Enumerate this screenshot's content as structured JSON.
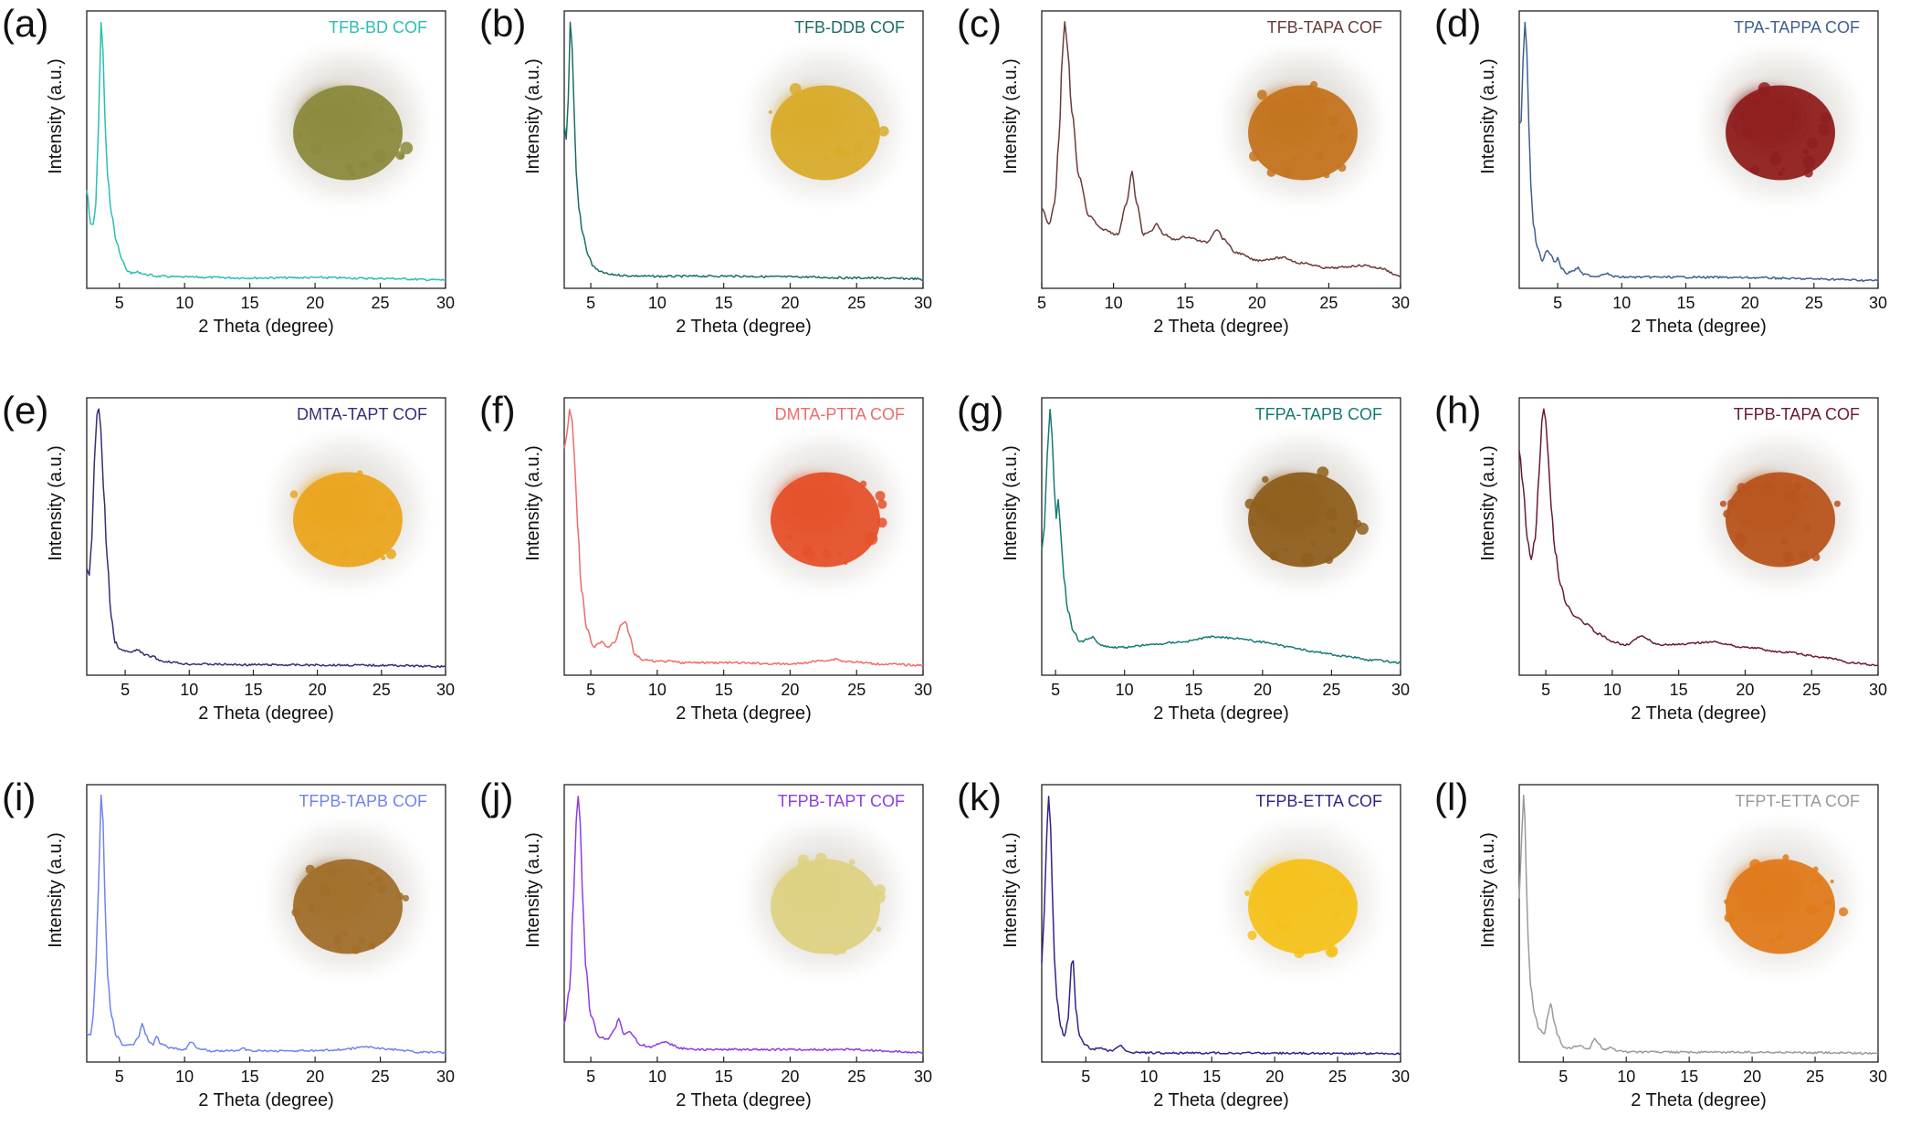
{
  "chart_data": [
    {
      "type": "line",
      "panel": "(a)",
      "title": "TFB-BD COF",
      "color": "#2bbfb3",
      "xlabel": "2 Theta (degree)",
      "ylabel": "Intensity (a.u.)",
      "xlim": [
        2.5,
        30
      ],
      "xticks": [
        5,
        10,
        15,
        20,
        25,
        30
      ],
      "photo": {
        "name": "olive-green powder",
        "color": "#8c8a3c",
        "bg": "#e4e1dc"
      },
      "series": [
        {
          "x": [
            2.5,
            2.8,
            3.0,
            3.2,
            3.4,
            3.6,
            3.75,
            3.9,
            4.1,
            4.4,
            4.8,
            5.2,
            5.6,
            6.0,
            6.4,
            7.0,
            8.0,
            10,
            15,
            20,
            25,
            30
          ],
          "y": [
            35,
            22,
            22,
            30,
            60,
            100,
            88,
            62,
            40,
            26,
            15,
            8,
            4,
            3,
            3.5,
            2.5,
            1.8,
            1.5,
            1.2,
            1.3,
            1.0,
            0.4
          ]
        }
      ]
    },
    {
      "type": "line",
      "panel": "(b)",
      "title": "TFB-DDB COF",
      "color": "#1b6e66",
      "xlabel": "2 Theta (degree)",
      "ylabel": "Intensity (a.u.)",
      "xlim": [
        3,
        30
      ],
      "xticks": [
        5,
        10,
        15,
        20,
        25,
        30
      ],
      "photo": {
        "name": "yellow powder",
        "color": "#d9ac2c",
        "bg": "#e8e6e3"
      },
      "series": [
        {
          "x": [
            3.0,
            3.15,
            3.3,
            3.45,
            3.6,
            3.75,
            3.9,
            4.1,
            4.4,
            4.8,
            5.2,
            5.7,
            6.5,
            8,
            10,
            15,
            20,
            25,
            29.5,
            30
          ],
          "y": [
            60,
            55,
            70,
            100,
            90,
            65,
            42,
            28,
            18,
            10,
            5.5,
            3.5,
            2.5,
            2,
            1.8,
            1.9,
            1.6,
            1.2,
            0.9,
            0.3
          ]
        }
      ]
    },
    {
      "type": "line",
      "panel": "(c)",
      "title": "TFB-TAPA COF",
      "color": "#6b3a3a",
      "xlabel": "2 Theta (degree)",
      "ylabel": "Intensity (a.u.)",
      "xlim": [
        5,
        30
      ],
      "xticks": [
        5,
        10,
        15,
        20,
        25,
        30
      ],
      "photo": {
        "name": "orange-brown powder",
        "color": "#c4741f",
        "bg": "#e4e1dd"
      },
      "series": [
        {
          "x": [
            5.0,
            5.5,
            5.9,
            6.2,
            6.45,
            6.6,
            6.8,
            7.1,
            7.6,
            8.3,
            9.2,
            10.3,
            10.9,
            11.3,
            11.6,
            12.1,
            12.6,
            13.0,
            13.5,
            14.2,
            15.0,
            16.5,
            17.2,
            17.7,
            18.5,
            20,
            21.8,
            23,
            25,
            27.5,
            28.5,
            30
          ],
          "y": [
            28,
            22,
            30,
            55,
            88,
            100,
            90,
            65,
            40,
            25,
            20,
            18,
            30,
            42,
            30,
            18,
            19,
            22,
            18,
            16,
            17,
            15,
            20,
            16,
            11,
            8,
            9,
            7,
            5,
            6,
            5,
            2
          ]
        }
      ]
    },
    {
      "type": "line",
      "panel": "(d)",
      "title": "TPA-TAPPA COF",
      "color": "#3f5f8f",
      "xlabel": "2 Theta (degree)",
      "ylabel": "Intensity (a.u.)",
      "xlim": [
        2,
        30
      ],
      "xticks": [
        5,
        10,
        15,
        20,
        25,
        30
      ],
      "photo": {
        "name": "dark red powder",
        "color": "#8f1f1e",
        "bg": "#e6e3df"
      },
      "series": [
        {
          "x": [
            2.0,
            2.15,
            2.3,
            2.45,
            2.6,
            2.75,
            2.9,
            3.1,
            3.4,
            3.8,
            4.2,
            4.5,
            4.8,
            5.0,
            5.3,
            5.7,
            6.2,
            6.6,
            7.0,
            8.0,
            8.8,
            9.3,
            10,
            15,
            20,
            25,
            30
          ],
          "y": [
            60,
            62,
            85,
            100,
            88,
            60,
            38,
            22,
            13,
            8,
            12,
            10,
            7,
            9,
            5,
            3,
            4,
            5,
            2.5,
            1.8,
            3,
            1.8,
            1.5,
            1.5,
            1.3,
            0.8,
            0.2
          ]
        }
      ]
    },
    {
      "type": "line",
      "panel": "(e)",
      "title": "DMTA-TAPT COF",
      "color": "#3d2a7a",
      "xlabel": "2 Theta (degree)",
      "ylabel": "Intensity (a.u.)",
      "xlim": [
        2,
        30
      ],
      "xticks": [
        5,
        10,
        15,
        20,
        25,
        30
      ],
      "photo": {
        "name": "yellow-orange powder",
        "color": "#eba51f",
        "bg": "#e7e4e0"
      },
      "series": [
        {
          "x": [
            2.0,
            2.2,
            2.4,
            2.6,
            2.8,
            2.95,
            3.1,
            3.3,
            3.6,
            3.9,
            4.2,
            4.6,
            5.0,
            5.5,
            6.0,
            6.5,
            7.0,
            8.0,
            10,
            15,
            20,
            25,
            30
          ],
          "y": [
            38,
            36,
            50,
            80,
            98,
            100,
            92,
            70,
            42,
            20,
            10,
            7,
            6.5,
            6,
            7,
            5,
            4.5,
            2.5,
            1.5,
            1.2,
            1.1,
            1.0,
            0.5
          ]
        }
      ]
    },
    {
      "type": "line",
      "panel": "(f)",
      "title": "DMTA-PTTA COF",
      "color": "#ef6b6b",
      "xlabel": "2 Theta (degree)",
      "ylabel": "Intensity (a.u.)",
      "xlim": [
        3,
        30
      ],
      "xticks": [
        5,
        10,
        15,
        20,
        25,
        30
      ],
      "photo": {
        "name": "red-orange powder",
        "color": "#e5512a",
        "bg": "#e7e3e0"
      },
      "series": [
        {
          "x": [
            3.0,
            3.2,
            3.4,
            3.6,
            3.8,
            4.0,
            4.3,
            4.7,
            5.2,
            5.8,
            6.3,
            6.8,
            7.3,
            7.6,
            7.9,
            8.3,
            9,
            10,
            11,
            12,
            15,
            20,
            23,
            23.5,
            24,
            27,
            30
          ],
          "y": [
            85,
            90,
            100,
            95,
            78,
            55,
            30,
            15,
            8,
            10,
            8,
            10,
            17,
            18,
            13,
            5,
            3,
            2.5,
            2.5,
            2,
            2,
            1.5,
            3,
            3.5,
            2.5,
            1.5,
            1
          ]
        }
      ]
    },
    {
      "type": "line",
      "panel": "(g)",
      "title": "TFPA-TAPB COF",
      "color": "#177a72",
      "xlabel": "2 Theta (degree)",
      "ylabel": "Intensity (a.u.)",
      "xlim": [
        4,
        30
      ],
      "xticks": [
        5,
        10,
        15,
        20,
        25,
        30
      ],
      "photo": {
        "name": "brown powder",
        "color": "#8f5f1d",
        "bg": "#e4e1dd"
      },
      "series": [
        {
          "x": [
            4.0,
            4.2,
            4.4,
            4.6,
            4.75,
            4.9,
            5.05,
            5.2,
            5.4,
            5.6,
            5.9,
            6.3,
            6.8,
            7.3,
            7.7,
            8.2,
            9,
            10,
            12,
            14,
            16.5,
            18,
            20,
            22,
            24,
            26,
            28,
            30
          ],
          "y": [
            45,
            55,
            82,
            100,
            90,
            70,
            58,
            65,
            50,
            35,
            22,
            14,
            10,
            11,
            12,
            9,
            8,
            8,
            9,
            10,
            12,
            11.5,
            10,
            8,
            6,
            4.5,
            3,
            2
          ]
        }
      ]
    },
    {
      "type": "line",
      "panel": "(h)",
      "title": "TFPB-TAPA COF",
      "color": "#6a1a33",
      "xlabel": "2 Theta (degree)",
      "ylabel": "Intensity (a.u.)",
      "xlim": [
        3,
        30
      ],
      "xticks": [
        5,
        10,
        15,
        20,
        25,
        30
      ],
      "photo": {
        "name": "rust-orange powder",
        "color": "#b8541d",
        "bg": "#e6e2de"
      },
      "series": [
        {
          "x": [
            3.0,
            3.3,
            3.6,
            3.9,
            4.2,
            4.5,
            4.7,
            4.85,
            5.0,
            5.2,
            5.4,
            5.7,
            6.1,
            6.6,
            7.2,
            8.0,
            9.0,
            10,
            11,
            12.2,
            13.5,
            15,
            17.5,
            20,
            23,
            26,
            28,
            30
          ],
          "y": [
            84,
            70,
            50,
            42,
            50,
            75,
            95,
            100,
            95,
            80,
            62,
            45,
            32,
            24,
            20,
            17,
            13,
            10,
            9,
            12,
            9,
            9,
            10,
            8,
            6,
            4,
            2,
            1
          ]
        }
      ]
    },
    {
      "type": "line",
      "panel": "(i)",
      "title": "TFPB-TAPB COF",
      "color": "#6f84ee",
      "xlabel": "2 Theta (degree)",
      "ylabel": "Intensity (a.u.)",
      "xlim": [
        2.5,
        30
      ],
      "xticks": [
        5,
        10,
        15,
        20,
        25,
        30
      ],
      "photo": {
        "name": "ochre-brown powder",
        "color": "#a16f2c",
        "bg": "#e6e3df"
      },
      "series": [
        {
          "x": [
            2.5,
            2.8,
            3.0,
            3.2,
            3.4,
            3.6,
            3.75,
            3.9,
            4.1,
            4.4,
            4.8,
            5.3,
            6.0,
            6.5,
            6.75,
            7.0,
            7.3,
            7.6,
            7.85,
            8.2,
            9,
            10,
            10.5,
            11,
            12,
            14,
            14.4,
            15,
            17.5,
            20,
            22,
            24,
            26,
            28,
            30
          ],
          "y": [
            8,
            8,
            15,
            35,
            65,
            100,
            90,
            60,
            30,
            15,
            7,
            4,
            4,
            7,
            12,
            8,
            5,
            4,
            7,
            4,
            2.5,
            2,
            5,
            2.5,
            1.5,
            1.5,
            2.5,
            1.5,
            1.5,
            1.5,
            2,
            3,
            2,
            1,
            0.8
          ]
        }
      ]
    },
    {
      "type": "line",
      "panel": "(j)",
      "title": "TFPB-TAPT COF",
      "color": "#8b3fe0",
      "xlabel": "2 Theta (degree)",
      "ylabel": "Intensity (a.u.)",
      "xlim": [
        3,
        30
      ],
      "xticks": [
        5,
        10,
        15,
        20,
        25,
        30
      ],
      "photo": {
        "name": "pale yellow powder",
        "color": "#ddd283",
        "bg": "#e7e4e0"
      },
      "series": [
        {
          "x": [
            3.0,
            3.4,
            3.7,
            3.9,
            4.05,
            4.2,
            4.35,
            4.6,
            5.0,
            5.6,
            6.3,
            6.8,
            7.1,
            7.5,
            7.9,
            8.2,
            8.7,
            9.5,
            10.5,
            11,
            11.7,
            13,
            15,
            20,
            25,
            28,
            30
          ],
          "y": [
            12,
            25,
            60,
            90,
            100,
            90,
            65,
            35,
            15,
            7,
            6,
            10,
            14,
            8,
            9,
            7,
            4,
            3,
            5,
            4,
            2.5,
            2,
            2,
            2,
            2,
            1.2,
            1
          ]
        }
      ]
    },
    {
      "type": "line",
      "panel": "(k)",
      "title": "TFPB-ETTA COF",
      "color": "#3a1f8a",
      "xlabel": "2 Theta (degree)",
      "ylabel": "Intensity (a.u.)",
      "xlim": [
        1.5,
        30
      ],
      "xticks": [
        5,
        10,
        15,
        20,
        25,
        30
      ],
      "photo": {
        "name": "bright yellow powder",
        "color": "#f4c21c",
        "bg": "#ebe8e4"
      },
      "series": [
        {
          "x": [
            1.5,
            1.7,
            1.9,
            2.05,
            2.2,
            2.35,
            2.5,
            2.7,
            3.0,
            3.3,
            3.6,
            3.85,
            4.0,
            4.2,
            4.5,
            4.9,
            5.5,
            6.0,
            7.0,
            7.7,
            8.2,
            9,
            10,
            15,
            20,
            25,
            30
          ],
          "y": [
            35,
            55,
            85,
            100,
            88,
            62,
            38,
            22,
            11,
            7,
            14,
            35,
            36,
            18,
            7,
            4,
            2,
            2.5,
            1.5,
            3.5,
            1.5,
            0.8,
            0.7,
            0.7,
            0.6,
            0.5,
            0.5
          ]
        }
      ]
    },
    {
      "type": "line",
      "panel": "(l)",
      "title": "TFPT-ETTA COF",
      "color": "#9a9a9a",
      "xlabel": "2 Theta (degree)",
      "ylabel": "Intensity (a.u.)",
      "xlim": [
        1.5,
        30
      ],
      "xticks": [
        5,
        10,
        15,
        20,
        25,
        30
      ],
      "photo": {
        "name": "orange powder",
        "color": "#e07a1b",
        "bg": "#eae7e3"
      },
      "series": [
        {
          "x": [
            1.5,
            1.7,
            1.85,
            1.95,
            2.05,
            2.2,
            2.4,
            2.7,
            3.1,
            3.5,
            3.8,
            4.0,
            4.3,
            4.6,
            5.0,
            5.6,
            6.2,
            7.0,
            7.5,
            7.8,
            8.3,
            8.8,
            9.3,
            10,
            15,
            20,
            25,
            30
          ],
          "y": [
            60,
            85,
            100,
            92,
            70,
            45,
            27,
            16,
            10,
            8,
            16,
            20,
            12,
            7,
            3,
            2.5,
            3.5,
            2.2,
            6,
            4,
            2,
            3,
            1.5,
            1,
            1,
            1,
            0.8,
            0.6
          ]
        }
      ]
    }
  ]
}
